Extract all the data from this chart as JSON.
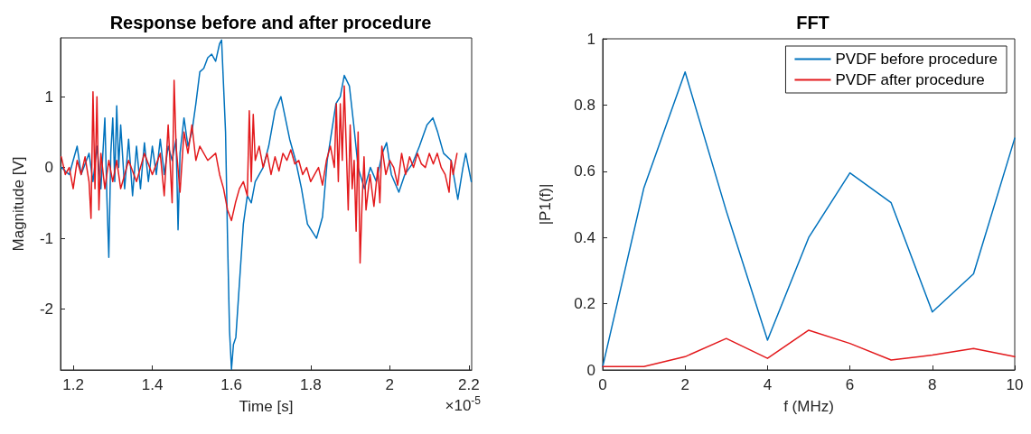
{
  "chart_data": [
    {
      "type": "line",
      "title": "Response before and after procedure",
      "xlabel": "Time [s]",
      "ylabel": "Magnitude [V]",
      "annotations": [
        "×10$^{-5}$"
      ],
      "xlim": [
        1.168,
        2.207
      ],
      "xticks": [
        1.2,
        1.4,
        1.6,
        1.8,
        2,
        2.2
      ],
      "ylim": [
        -2.86,
        1.83
      ],
      "yticks": [
        -2,
        -1,
        0,
        1
      ],
      "grid": false,
      "legend": false,
      "marker": "none",
      "line_style": "solid",
      "series": [
        {
          "color": "#0072bd",
          "x": [
            1.17,
            1.19,
            1.21,
            1.22,
            1.24,
            1.25,
            1.26,
            1.27,
            1.28,
            1.285,
            1.29,
            1.295,
            1.3,
            1.305,
            1.31,
            1.315,
            1.32,
            1.33,
            1.34,
            1.35,
            1.36,
            1.37,
            1.38,
            1.39,
            1.4,
            1.41,
            1.42,
            1.43,
            1.44,
            1.45,
            1.46,
            1.465,
            1.47,
            1.48,
            1.49,
            1.5,
            1.51,
            1.52,
            1.53,
            1.54,
            1.55,
            1.56,
            1.57,
            1.575,
            1.585,
            1.59,
            1.595,
            1.6,
            1.605,
            1.611,
            1.63,
            1.64,
            1.65,
            1.66,
            1.68,
            1.694,
            1.71,
            1.725,
            1.736,
            1.747,
            1.762,
            1.777,
            1.792,
            1.815,
            1.83,
            1.842,
            1.853,
            1.864,
            1.875,
            1.885,
            1.898,
            1.909,
            1.92,
            1.936,
            1.951,
            1.966,
            1.981,
            1.992,
            2.004,
            2.023,
            2.038,
            2.057,
            2.075,
            2.094,
            2.109,
            2.121,
            2.136,
            2.155,
            2.172,
            2.185,
            2.192,
            2.206
          ],
          "values": [
            0.0,
            -0.1,
            0.3,
            -0.1,
            0.2,
            -0.2,
            0.3,
            -0.3,
            0.7,
            -0.4,
            -1.27,
            0.2,
            0.7,
            -0.2,
            0.87,
            0.0,
            0.6,
            -0.3,
            0.4,
            -0.4,
            0.3,
            -0.3,
            0.35,
            -0.2,
            0.3,
            -0.1,
            0.4,
            -0.1,
            0.3,
            0.1,
            0.4,
            -0.88,
            0.2,
            0.7,
            0.3,
            0.5,
            0.9,
            1.35,
            1.4,
            1.55,
            1.6,
            1.5,
            1.75,
            1.8,
            0.5,
            -1.0,
            -2.3,
            -2.85,
            -2.5,
            -2.4,
            -0.8,
            -0.4,
            -0.5,
            -0.2,
            0.0,
            0.3,
            0.8,
            1.0,
            0.7,
            0.4,
            0.1,
            -0.3,
            -0.8,
            -1.0,
            -0.7,
            0.1,
            0.5,
            0.9,
            1.0,
            1.3,
            1.15,
            0.6,
            0.0,
            -0.3,
            0.0,
            -0.2,
            0.2,
            0.35,
            -0.1,
            -0.35,
            -0.1,
            0.05,
            0.3,
            0.6,
            0.7,
            0.5,
            0.2,
            0.1,
            -0.45,
            0.0,
            0.2,
            -0.2
          ]
        },
        {
          "color": "#e3191c",
          "x": [
            1.17,
            1.18,
            1.19,
            1.2,
            1.21,
            1.22,
            1.23,
            1.24,
            1.245,
            1.25,
            1.255,
            1.26,
            1.265,
            1.27,
            1.28,
            1.29,
            1.3,
            1.31,
            1.32,
            1.34,
            1.36,
            1.38,
            1.4,
            1.42,
            1.43,
            1.44,
            1.45,
            1.455,
            1.46,
            1.47,
            1.48,
            1.49,
            1.5,
            1.51,
            1.52,
            1.54,
            1.56,
            1.57,
            1.58,
            1.59,
            1.6,
            1.61,
            1.62,
            1.63,
            1.64,
            1.645,
            1.65,
            1.655,
            1.66,
            1.67,
            1.68,
            1.69,
            1.7,
            1.71,
            1.72,
            1.73,
            1.74,
            1.75,
            1.76,
            1.77,
            1.78,
            1.79,
            1.8,
            1.81,
            1.82,
            1.83,
            1.84,
            1.85,
            1.86,
            1.865,
            1.87,
            1.875,
            1.88,
            1.885,
            1.89,
            1.895,
            1.9,
            1.905,
            1.91,
            1.915,
            1.92,
            1.925,
            1.93,
            1.935,
            1.94,
            1.95,
            1.96,
            1.97,
            1.975,
            1.98,
            1.99,
            2.0,
            2.01,
            2.02,
            2.03,
            2.04,
            2.05,
            2.06,
            2.07,
            2.08,
            2.09,
            2.1,
            2.11,
            2.12,
            2.13,
            2.14,
            2.15,
            2.155,
            2.16,
            2.17
          ],
          "values": [
            0.15,
            -0.1,
            0.0,
            -0.3,
            0.1,
            -0.1,
            0.15,
            -0.2,
            -0.72,
            1.07,
            -0.3,
            1.0,
            -0.6,
            0.2,
            -0.3,
            0.1,
            -0.2,
            0.1,
            -0.3,
            0.1,
            -0.2,
            0.2,
            -0.1,
            0.2,
            -0.4,
            0.6,
            -0.5,
            1.23,
            0.3,
            -0.35,
            0.5,
            0.2,
            0.6,
            0.1,
            0.3,
            0.1,
            0.2,
            -0.1,
            -0.3,
            -0.6,
            -0.75,
            -0.5,
            -0.3,
            -0.2,
            -0.4,
            0.8,
            -0.2,
            0.75,
            0.1,
            0.3,
            0.0,
            0.2,
            -0.1,
            0.15,
            -0.05,
            0.2,
            0.1,
            0.25,
            0.05,
            0.1,
            -0.1,
            0.0,
            -0.2,
            -0.1,
            0.0,
            -0.25,
            0.1,
            0.3,
            0.0,
            0.9,
            -0.2,
            0.9,
            0.1,
            1.15,
            0.3,
            -0.6,
            0.6,
            -0.3,
            0.1,
            -0.9,
            0.5,
            -1.35,
            -0.5,
            0.15,
            -0.6,
            -0.1,
            -0.55,
            0.0,
            -0.5,
            0.3,
            -0.1,
            0.1,
            0.0,
            -0.25,
            0.2,
            -0.1,
            0.15,
            0.0,
            0.2,
            0.05,
            0.0,
            0.2,
            0.05,
            0.2,
            0.0,
            -0.1,
            -0.35,
            0.1,
            -0.1,
            0.2
          ]
        }
      ]
    },
    {
      "type": "line",
      "title": "FFT",
      "xlabel": "f (MHz)",
      "ylabel": "|P1(f)|",
      "x": [
        0,
        1,
        2,
        3,
        4,
        5,
        6,
        7,
        8,
        9,
        10
      ],
      "xlim": [
        0,
        10
      ],
      "xticks": [
        0,
        2,
        4,
        6,
        8,
        10
      ],
      "ylim": [
        0,
        1
      ],
      "yticks": [
        0,
        0.2,
        0.4,
        0.6,
        0.8,
        1
      ],
      "grid": false,
      "legend": "top right",
      "marker": "none",
      "line_style": "solid",
      "series": [
        {
          "name": "PVDF before procedure",
          "color": "#0072bd",
          "values": [
            0.01,
            0.55,
            0.9,
            0.48,
            0.09,
            0.4,
            0.595,
            0.505,
            0.175,
            0.29,
            0.7
          ]
        },
        {
          "name": "PVDF after procedure",
          "color": "#e3191c",
          "values": [
            0.01,
            0.01,
            0.04,
            0.095,
            0.035,
            0.12,
            0.08,
            0.03,
            0.045,
            0.065,
            0.04
          ]
        }
      ]
    }
  ]
}
